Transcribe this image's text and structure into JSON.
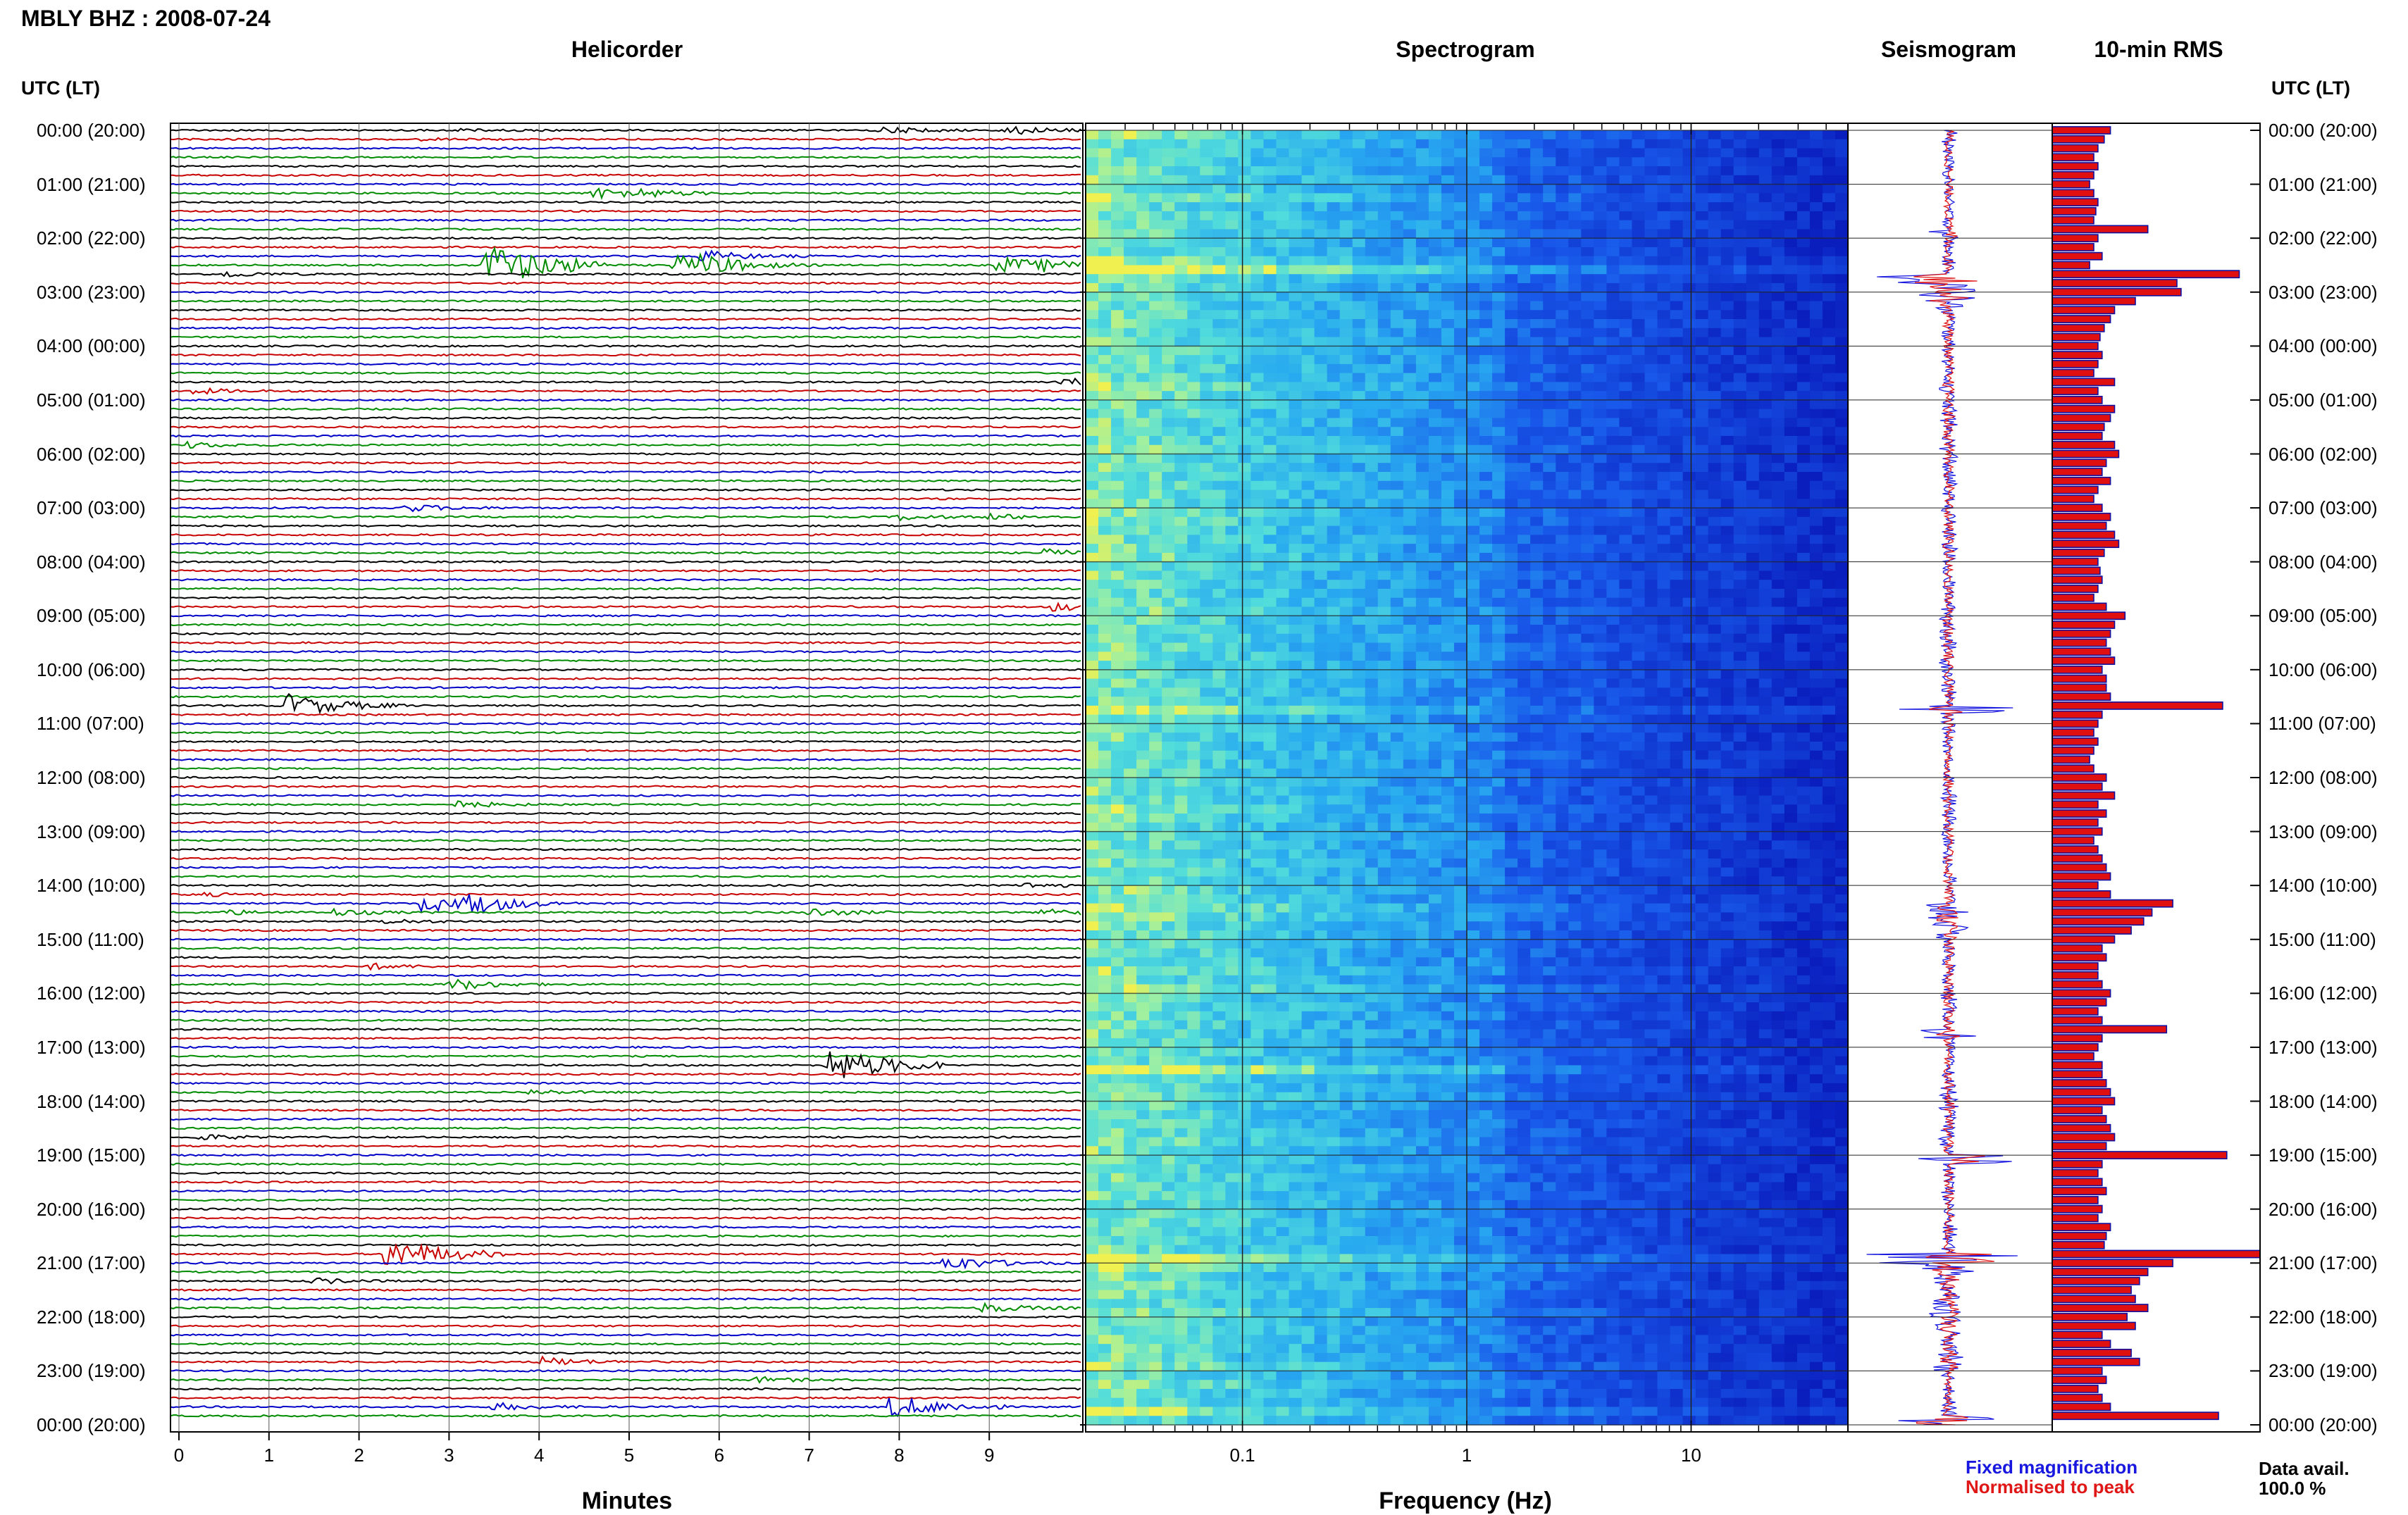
{
  "station": "MBLY BHZ",
  "date": "2008-07-24",
  "header": {
    "title": "MBLY BHZ : 2008-07-24"
  },
  "panels": {
    "helicorder": "Helicorder",
    "spectrogram": "Spectrogram",
    "seismogram": "Seismogram",
    "rms": "10-min RMS"
  },
  "axis": {
    "time_label": "UTC (LT)",
    "minutes_label": "Minutes",
    "frequency_label": "Frequency (Hz)"
  },
  "legend": {
    "fixed": "Fixed magnification",
    "normalised": "Normalised to peak",
    "fixed_color": "#1717e0",
    "normalised_color": "#e01717"
  },
  "availability": {
    "label": "Data avail.",
    "value": "100.0 %"
  },
  "colors": {
    "trace_cycle": [
      "#000000",
      "#c80000",
      "#0000c8",
      "#008c00"
    ],
    "rms_fill": "#e01010",
    "rms_edge": "#1010a0"
  },
  "chart_data": [
    {
      "type": "line",
      "name": "helicorder",
      "title": "Helicorder",
      "xlabel": "Minutes",
      "xlim": [
        0,
        10
      ],
      "x_ticks": [
        "0",
        "1",
        "2",
        "3",
        "4",
        "5",
        "6",
        "7",
        "8",
        "9"
      ],
      "rows_per_hour": 6,
      "y_tick_labels": [
        "00:00 (20:00)",
        "01:00 (21:00)",
        "02:00 (22:00)",
        "03:00 (23:00)",
        "04:00 (00:00)",
        "05:00 (01:00)",
        "06:00 (02:00)",
        "07:00 (03:00)",
        "08:00 (04:00)",
        "09:00 (05:00)",
        "10:00 (06:00)",
        "11:00 (07:00)",
        "12:00 (08:00)",
        "13:00 (09:00)",
        "14:00 (10:00)",
        "15:00 (11:00)",
        "16:00 (12:00)",
        "17:00 (13:00)",
        "18:00 (14:00)",
        "19:00 (15:00)",
        "20:00 (16:00)",
        "21:00 (17:00)",
        "22:00 (18:00)",
        "23:00 (19:00)",
        "00:00 (20:00)"
      ],
      "events": [
        {
          "row": 0,
          "minute": 3.1,
          "amp": 0.1
        },
        {
          "row": 0,
          "minute": 7.8,
          "amp": 0.35
        },
        {
          "row": 0,
          "minute": 9.2,
          "amp": 0.45
        },
        {
          "row": 1,
          "minute": 2.7,
          "amp": 0.1
        },
        {
          "row": 7,
          "minute": 4.6,
          "amp": 0.6
        },
        {
          "row": 7,
          "minute": 5.0,
          "amp": 0.4
        },
        {
          "row": 14,
          "minute": 5.8,
          "amp": 0.6
        },
        {
          "row": 15,
          "minute": 3.4,
          "amp": 2.2
        },
        {
          "row": 15,
          "minute": 5.5,
          "amp": 1.0
        },
        {
          "row": 15,
          "minute": 5.8,
          "amp": 0.6
        },
        {
          "row": 15,
          "minute": 9.1,
          "amp": 0.9
        },
        {
          "row": 15,
          "minute": 9.6,
          "amp": 0.3
        },
        {
          "row": 16,
          "minute": 0.5,
          "amp": 0.3
        },
        {
          "row": 28,
          "minute": 9.8,
          "amp": 0.4
        },
        {
          "row": 29,
          "minute": 0.15,
          "amp": 0.3
        },
        {
          "row": 35,
          "minute": 0.1,
          "amp": 0.3
        },
        {
          "row": 42,
          "minute": 2.5,
          "amp": 0.4
        },
        {
          "row": 43,
          "minute": 8.0,
          "amp": 0.3
        },
        {
          "row": 43,
          "minute": 9.0,
          "amp": 0.3
        },
        {
          "row": 47,
          "minute": 9.6,
          "amp": 0.35
        },
        {
          "row": 53,
          "minute": 9.7,
          "amp": 0.45
        },
        {
          "row": 64,
          "minute": 1.2,
          "amp": 1.2
        },
        {
          "row": 75,
          "minute": 3.1,
          "amp": 0.35
        },
        {
          "row": 84,
          "minute": 9.4,
          "amp": 0.3
        },
        {
          "row": 85,
          "minute": 0.2,
          "amp": 0.2
        },
        {
          "row": 86,
          "minute": 2.7,
          "amp": 0.9
        },
        {
          "row": 86,
          "minute": 3.2,
          "amp": 0.9
        },
        {
          "row": 87,
          "minute": 0.5,
          "amp": 0.25
        },
        {
          "row": 87,
          "minute": 1.7,
          "amp": 0.35
        },
        {
          "row": 87,
          "minute": 7.0,
          "amp": 0.45
        },
        {
          "row": 87,
          "minute": 9.6,
          "amp": 0.5
        },
        {
          "row": 88,
          "minute": 2.3,
          "amp": 0.25
        },
        {
          "row": 93,
          "minute": 2.1,
          "amp": 0.3
        },
        {
          "row": 95,
          "minute": 3.0,
          "amp": 0.6
        },
        {
          "row": 104,
          "minute": 7.2,
          "amp": 1.8
        },
        {
          "row": 107,
          "minute": 3.9,
          "amp": 0.25
        },
        {
          "row": 112,
          "minute": 0.2,
          "amp": 0.3
        },
        {
          "row": 125,
          "minute": 2.3,
          "amp": 1.6
        },
        {
          "row": 126,
          "minute": 8.5,
          "amp": 0.8
        },
        {
          "row": 128,
          "minute": 1.5,
          "amp": 0.3
        },
        {
          "row": 131,
          "minute": 8.9,
          "amp": 0.5
        },
        {
          "row": 137,
          "minute": 4.0,
          "amp": 0.5
        },
        {
          "row": 139,
          "minute": 6.4,
          "amp": 0.3
        },
        {
          "row": 142,
          "minute": 3.5,
          "amp": 0.4
        },
        {
          "row": 142,
          "minute": 7.9,
          "amp": 1.2
        }
      ]
    },
    {
      "type": "heatmap",
      "name": "spectrogram",
      "title": "Spectrogram",
      "xlabel": "Frequency (Hz)",
      "x_scale": "log",
      "xlim": [
        0.02,
        50
      ],
      "x_tick_labels": [
        "0.1",
        "1",
        "10"
      ]
    },
    {
      "type": "line",
      "name": "seismogram",
      "title": "Seismogram",
      "series": [
        {
          "name": "Fixed magnification",
          "color": "#1717e0"
        },
        {
          "name": "Normalised to peak",
          "color": "#e01717"
        }
      ]
    },
    {
      "type": "bar",
      "name": "rms",
      "title": "10-min RMS",
      "orientation": "horizontal",
      "bins": 144,
      "values_relative": [
        0.28,
        0.25,
        0.22,
        0.2,
        0.22,
        0.2,
        0.18,
        0.2,
        0.22,
        0.21,
        0.2,
        0.46,
        0.22,
        0.2,
        0.24,
        0.18,
        0.9,
        0.6,
        0.62,
        0.4,
        0.3,
        0.28,
        0.25,
        0.23,
        0.22,
        0.24,
        0.22,
        0.2,
        0.3,
        0.22,
        0.24,
        0.3,
        0.28,
        0.25,
        0.24,
        0.3,
        0.32,
        0.26,
        0.24,
        0.28,
        0.22,
        0.2,
        0.24,
        0.28,
        0.26,
        0.3,
        0.32,
        0.25,
        0.22,
        0.23,
        0.24,
        0.22,
        0.2,
        0.26,
        0.35,
        0.3,
        0.28,
        0.26,
        0.28,
        0.3,
        0.24,
        0.26,
        0.26,
        0.28,
        0.82,
        0.24,
        0.22,
        0.2,
        0.22,
        0.2,
        0.18,
        0.2,
        0.26,
        0.24,
        0.3,
        0.22,
        0.26,
        0.22,
        0.24,
        0.2,
        0.22,
        0.24,
        0.26,
        0.28,
        0.22,
        0.28,
        0.58,
        0.48,
        0.44,
        0.38,
        0.3,
        0.24,
        0.26,
        0.22,
        0.22,
        0.24,
        0.28,
        0.26,
        0.22,
        0.24,
        0.55,
        0.24,
        0.22,
        0.2,
        0.24,
        0.24,
        0.26,
        0.28,
        0.3,
        0.24,
        0.26,
        0.28,
        0.3,
        0.26,
        0.84,
        0.24,
        0.22,
        0.24,
        0.26,
        0.22,
        0.24,
        0.22,
        0.28,
        0.26,
        0.25,
        1.0,
        0.58,
        0.46,
        0.42,
        0.38,
        0.4,
        0.46,
        0.36,
        0.4,
        0.24,
        0.28,
        0.38,
        0.42,
        0.24,
        0.26,
        0.22,
        0.24,
        0.28,
        0.8
      ]
    }
  ]
}
